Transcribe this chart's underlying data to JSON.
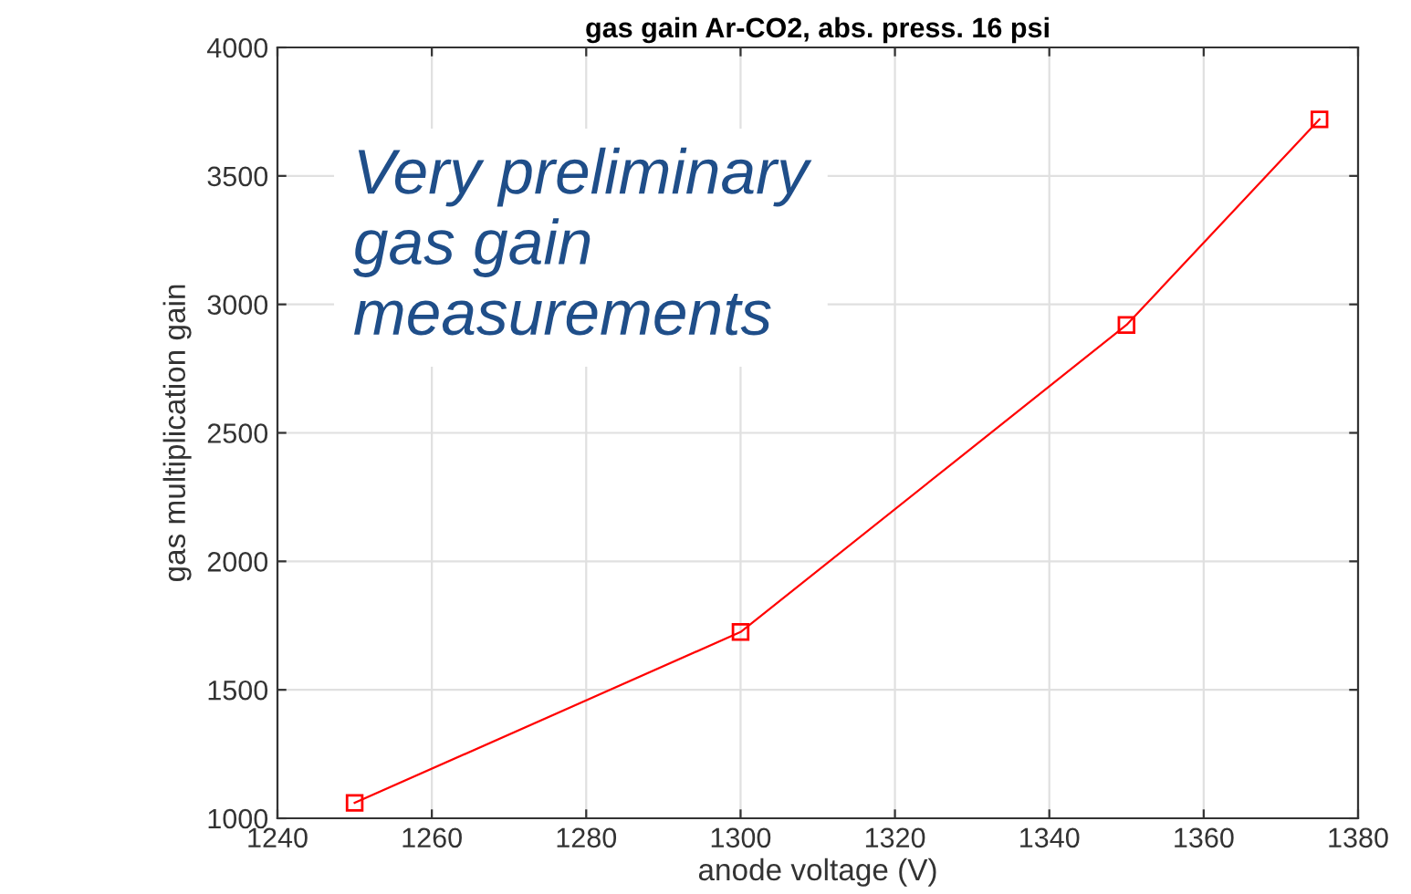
{
  "chart_data": {
    "type": "line",
    "title": "gas gain Ar-CO2, abs. press. 16 psi",
    "xlabel": "anode voltage (V)",
    "ylabel": "gas multiplication gain",
    "x": [
      1250,
      1300,
      1350,
      1375
    ],
    "series": [
      {
        "color": "#ff0000",
        "values": [
          1060,
          1725,
          2920,
          3720
        ]
      }
    ],
    "xlim": [
      1240,
      1380
    ],
    "xticks": [
      1240,
      1260,
      1280,
      1300,
      1320,
      1340,
      1360,
      1380
    ],
    "ylim": [
      1000,
      4000
    ],
    "yticks": [
      1000,
      1500,
      2000,
      2500,
      3000,
      3500,
      4000
    ],
    "grid": true,
    "marker": "square",
    "line_style": "solid",
    "annotations": [
      "Very preliminary\ngas gain\nmeasurements"
    ]
  }
}
